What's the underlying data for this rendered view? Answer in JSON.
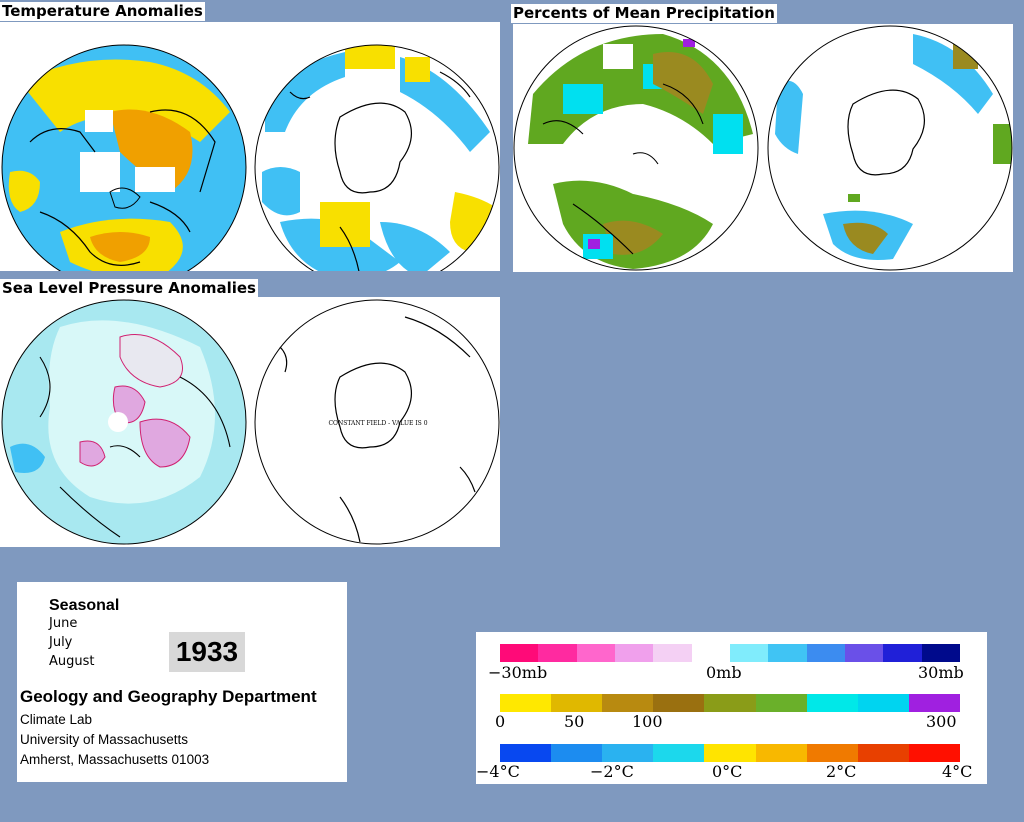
{
  "panels": {
    "temperature": {
      "title": "Temperature Anomalies"
    },
    "precipitation": {
      "title": "Percents of Mean Precipitation"
    },
    "pressure": {
      "title": "Sea Level Pressure Anomalies",
      "south_note": "CONSTANT FIELD - VALUE IS 0"
    }
  },
  "info": {
    "season": "Seasonal",
    "months": [
      "June",
      "July",
      "August"
    ],
    "year": "1933",
    "department": "Geology and Geography Department",
    "address": [
      "Climate Lab",
      "University of Massachusetts",
      "Amherst, Massachusetts 01003"
    ]
  },
  "legend": {
    "pressure": {
      "labels": [
        "−30mb",
        "0mb",
        "30mb"
      ],
      "colors": [
        "#ff0a78",
        "#ff2aa0",
        "#ff66cc",
        "#f0a0ec",
        "#f4d0f4",
        "#ffffff",
        "#80ecfc",
        "#40c4f4",
        "#3c8cf0",
        "#6a50e8",
        "#2020d8",
        "#000a8c"
      ]
    },
    "precipitation": {
      "labels": [
        "0",
        "50",
        "100",
        "300"
      ],
      "colors": [
        "#ffe800",
        "#e0b800",
        "#b88a10",
        "#9a7010",
        "#8a9c18",
        "#6ab02a",
        "#00e8e8",
        "#00d4f0",
        "#a020e0"
      ]
    },
    "temperature": {
      "labels": [
        "−4°C",
        "−2°C",
        "0°C",
        "2°C",
        "4°C"
      ],
      "colors": [
        "#0848f0",
        "#1c8cf0",
        "#2ab2f0",
        "#1cd8ec",
        "#ffe400",
        "#f8b800",
        "#f07a00",
        "#e84000",
        "#ff1000"
      ]
    }
  },
  "map_colors": {
    "cyan": "#00e0f0",
    "light_blue": "#40c0f4",
    "yellow": "#f8e000",
    "orange": "#f0a000",
    "green": "#60a820",
    "olive": "#9a8a20",
    "pale_cyan": "#d8f8f8",
    "mid_cyan": "#a8e8f0",
    "pink": "#e0a8e0"
  }
}
